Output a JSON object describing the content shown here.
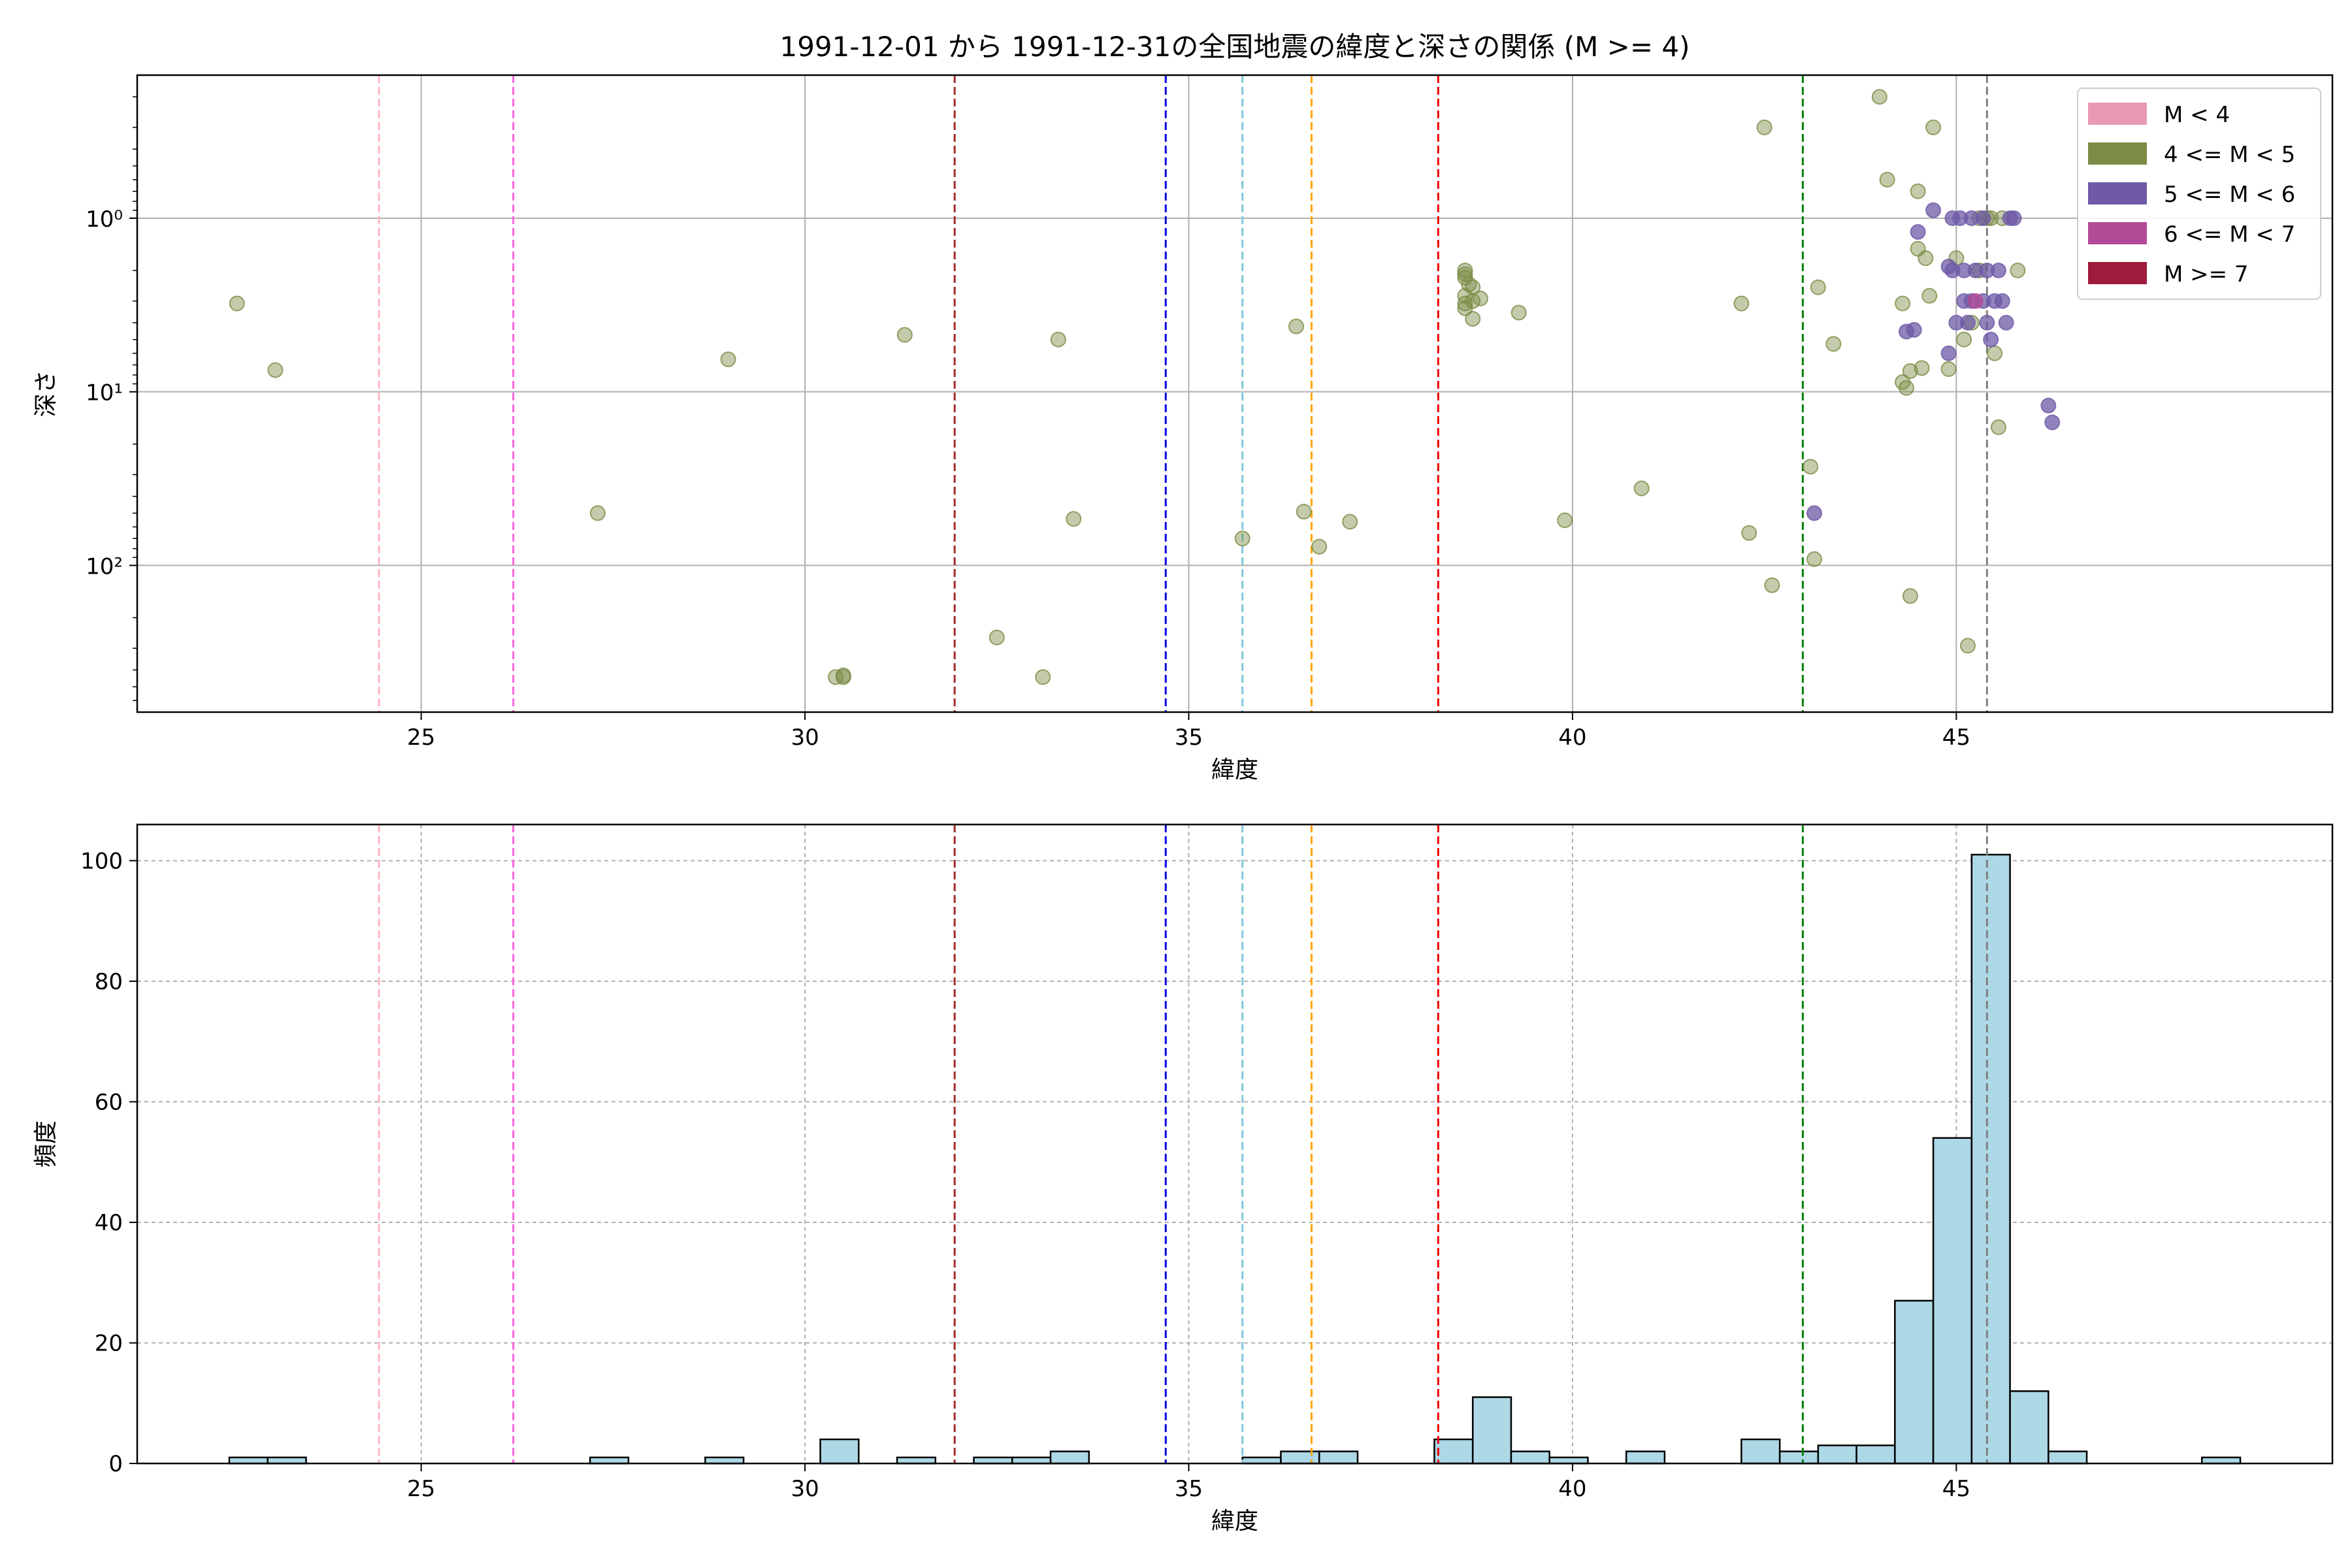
{
  "chart_data": [
    {
      "type": "scatter",
      "title": "1991-12-01 から 1991-12-31の全国地震の緯度と深さの関係 (M >= 4)",
      "xlabel": "緯度",
      "ylabel": "深さ",
      "xlim": [
        21.3,
        49.9
      ],
      "ylim": [
        700,
        0.15
      ],
      "yscale": "log (inverted)",
      "xticks": [
        "25",
        "30",
        "35",
        "40",
        "45"
      ],
      "yticks": [
        "10⁰",
        "10¹",
        "10²"
      ],
      "grid": true,
      "legend_position": "top-right",
      "legend": [
        {
          "label": "M < 4",
          "color": "#e899b4"
        },
        {
          "label": "4 <= M < 5",
          "color": "#7a8c45"
        },
        {
          "label": "5 <= M < 6",
          "color": "#6e5aa6"
        },
        {
          "label": "6 <= M < 7",
          "color": "#b24a97"
        },
        {
          "label": "M >= 7",
          "color": "#9e1b3c"
        }
      ],
      "vlines": [
        {
          "x": 24.45,
          "color": "#ffb6c1"
        },
        {
          "x": 26.2,
          "color": "#ff66dd"
        },
        {
          "x": 31.95,
          "color": "#a52a2a"
        },
        {
          "x": 34.7,
          "color": "#0000dd"
        },
        {
          "x": 35.7,
          "color": "#7ec8dc"
        },
        {
          "x": 36.6,
          "color": "#ffa500"
        },
        {
          "x": 38.25,
          "color": "#ee0000"
        },
        {
          "x": 43.0,
          "color": "#008000"
        },
        {
          "x": 45.4,
          "color": "#808080"
        }
      ],
      "series": [
        {
          "name": "4 <= M < 5",
          "color": "#7a8c45",
          "points": [
            [
              22.6,
              3.1
            ],
            [
              23.1,
              7.5
            ],
            [
              27.3,
              50
            ],
            [
              29.0,
              6.5
            ],
            [
              30.4,
              440
            ],
            [
              30.5,
              430
            ],
            [
              30.5,
              440
            ],
            [
              31.3,
              4.7
            ],
            [
              32.5,
              260
            ],
            [
              33.1,
              440
            ],
            [
              33.3,
              5.0
            ],
            [
              33.5,
              54
            ],
            [
              35.7,
              70
            ],
            [
              36.4,
              4.2
            ],
            [
              36.5,
              49
            ],
            [
              36.7,
              78
            ],
            [
              37.1,
              56
            ],
            [
              38.6,
              2.0
            ],
            [
              38.6,
              2.1
            ],
            [
              38.6,
              2.2
            ],
            [
              38.65,
              2.4
            ],
            [
              38.6,
              2.8
            ],
            [
              38.6,
              3.1
            ],
            [
              38.6,
              3.3
            ],
            [
              38.7,
              2.5
            ],
            [
              38.7,
              3.0
            ],
            [
              38.7,
              3.8
            ],
            [
              38.8,
              2.9
            ],
            [
              39.3,
              3.5
            ],
            [
              39.9,
              55
            ],
            [
              40.9,
              36
            ],
            [
              42.2,
              3.1
            ],
            [
              42.3,
              65
            ],
            [
              42.5,
              0.3
            ],
            [
              42.6,
              130
            ],
            [
              43.1,
              27
            ],
            [
              43.15,
              92
            ],
            [
              43.2,
              2.5
            ],
            [
              43.4,
              5.3
            ],
            [
              44.0,
              0.2
            ],
            [
              44.1,
              0.6
            ],
            [
              44.3,
              3.1
            ],
            [
              44.3,
              8.8
            ],
            [
              44.35,
              9.5
            ],
            [
              44.4,
              150
            ],
            [
              44.4,
              7.6
            ],
            [
              44.5,
              0.7
            ],
            [
              44.5,
              1.5
            ],
            [
              44.55,
              7.3
            ],
            [
              44.6,
              1.7
            ],
            [
              44.65,
              2.8
            ],
            [
              44.7,
              0.3
            ],
            [
              44.9,
              7.4
            ],
            [
              45.0,
              1.7
            ],
            [
              45.1,
              5.0
            ],
            [
              45.15,
              290
            ],
            [
              45.2,
              4.0
            ],
            [
              45.3,
              1.0
            ],
            [
              45.3,
              2.0
            ],
            [
              45.4,
              1.0
            ],
            [
              45.45,
              1.0
            ],
            [
              45.5,
              6.0
            ],
            [
              45.55,
              16
            ],
            [
              45.6,
              1.0
            ],
            [
              45.8,
              2.0
            ]
          ]
        },
        {
          "name": "5 <= M < 6",
          "color": "#6e5aa6",
          "points": [
            [
              43.15,
              50
            ],
            [
              44.35,
              4.5
            ],
            [
              44.45,
              4.4
            ],
            [
              44.5,
              1.2
            ],
            [
              44.7,
              0.9
            ],
            [
              44.9,
              1.9
            ],
            [
              44.9,
              6.0
            ],
            [
              44.95,
              1.0
            ],
            [
              44.95,
              2.0
            ],
            [
              45.0,
              4.0
            ],
            [
              45.05,
              1.0
            ],
            [
              45.1,
              2.0
            ],
            [
              45.1,
              3.0
            ],
            [
              45.15,
              4.0
            ],
            [
              45.2,
              1.0
            ],
            [
              45.2,
              3.0
            ],
            [
              45.25,
              2.0
            ],
            [
              45.35,
              1.0
            ],
            [
              45.35,
              3.0
            ],
            [
              45.4,
              2.0
            ],
            [
              45.4,
              4.0
            ],
            [
              45.45,
              5.0
            ],
            [
              45.5,
              3.0
            ],
            [
              45.55,
              2.0
            ],
            [
              45.6,
              3.0
            ],
            [
              45.65,
              4.0
            ],
            [
              45.7,
              1.0
            ],
            [
              45.75,
              1.0
            ],
            [
              46.2,
              12
            ],
            [
              46.25,
              15
            ]
          ]
        },
        {
          "name": "6 <= M < 7",
          "color": "#b24a97",
          "points": [
            [
              45.25,
              3.0
            ]
          ]
        }
      ]
    },
    {
      "type": "bar",
      "xlabel": "緯度",
      "ylabel": "頻度",
      "xlim": [
        21.3,
        49.9
      ],
      "ylim": [
        0,
        106
      ],
      "xticks": [
        "25",
        "30",
        "35",
        "40",
        "45"
      ],
      "yticks": [
        "0",
        "20",
        "40",
        "60",
        "80",
        "100"
      ],
      "grid": true,
      "bar_color": "#add8e6",
      "bin_width": 0.5,
      "bins": [
        {
          "x": 22.5,
          "count": 1
        },
        {
          "x": 23.0,
          "count": 1
        },
        {
          "x": 27.2,
          "count": 1
        },
        {
          "x": 28.7,
          "count": 1
        },
        {
          "x": 30.2,
          "count": 4
        },
        {
          "x": 31.2,
          "count": 1
        },
        {
          "x": 32.2,
          "count": 1
        },
        {
          "x": 32.7,
          "count": 1
        },
        {
          "x": 33.2,
          "count": 2
        },
        {
          "x": 35.7,
          "count": 1
        },
        {
          "x": 36.2,
          "count": 2
        },
        {
          "x": 36.7,
          "count": 2
        },
        {
          "x": 38.2,
          "count": 4
        },
        {
          "x": 38.7,
          "count": 11
        },
        {
          "x": 39.2,
          "count": 2
        },
        {
          "x": 39.7,
          "count": 1
        },
        {
          "x": 40.7,
          "count": 2
        },
        {
          "x": 42.2,
          "count": 4
        },
        {
          "x": 42.7,
          "count": 2
        },
        {
          "x": 43.2,
          "count": 3
        },
        {
          "x": 43.7,
          "count": 3
        },
        {
          "x": 44.2,
          "count": 27
        },
        {
          "x": 44.7,
          "count": 54
        },
        {
          "x": 45.2,
          "count": 101
        },
        {
          "x": 45.7,
          "count": 12
        },
        {
          "x": 46.2,
          "count": 2
        },
        {
          "x": 48.2,
          "count": 1
        }
      ],
      "vlines": [
        {
          "x": 24.45,
          "color": "#ffb6c1"
        },
        {
          "x": 26.2,
          "color": "#ff66dd"
        },
        {
          "x": 31.95,
          "color": "#a52a2a"
        },
        {
          "x": 34.7,
          "color": "#0000dd"
        },
        {
          "x": 35.7,
          "color": "#7ec8dc"
        },
        {
          "x": 36.6,
          "color": "#ffa500"
        },
        {
          "x": 38.25,
          "color": "#ee0000"
        },
        {
          "x": 43.0,
          "color": "#008000"
        },
        {
          "x": 45.4,
          "color": "#808080"
        }
      ]
    }
  ]
}
